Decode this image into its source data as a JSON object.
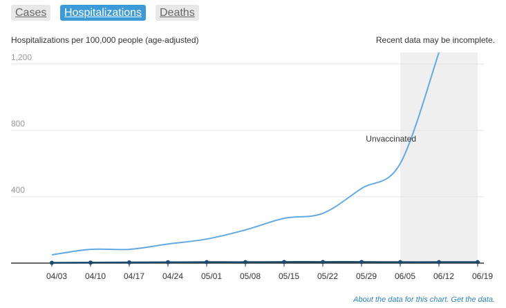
{
  "tabs": [
    "Cases",
    "Hospitalizations",
    "Deaths"
  ],
  "active_tab": 1,
  "footer": [
    "About the data for this chart.",
    "Get the data."
  ],
  "chart_data": {
    "type": "line",
    "y_label": "Hospitalizations per 100,000 people (age-adjusted)",
    "note": "Recent data may be incomplete.",
    "annotation": "Unvaccinated",
    "categories": [
      "04/03",
      "04/10",
      "04/17",
      "04/24",
      "05/01",
      "05/08",
      "05/15",
      "05/22",
      "05/29",
      "06/05",
      "06/12",
      "06/19"
    ],
    "series": [
      {
        "name": "Unvaccinated",
        "color": "#62a9e3",
        "values": [
          50,
          83,
          83,
          115,
          145,
          200,
          270,
          300,
          450,
          600,
          1270,
          null
        ]
      },
      {
        "color": "#1b4a6b",
        "values": [
          2,
          3,
          4,
          5,
          6,
          6,
          7,
          7,
          7,
          6,
          6,
          6
        ]
      }
    ],
    "shaded_categories": [
      "06/05",
      "06/19"
    ],
    "ylim": [
      0,
      1270
    ],
    "yticks": [
      {
        "value": 400,
        "label": "400"
      },
      {
        "value": 800,
        "label": "800"
      },
      {
        "value": 1200,
        "label": "1,200"
      }
    ],
    "grid": true
  }
}
